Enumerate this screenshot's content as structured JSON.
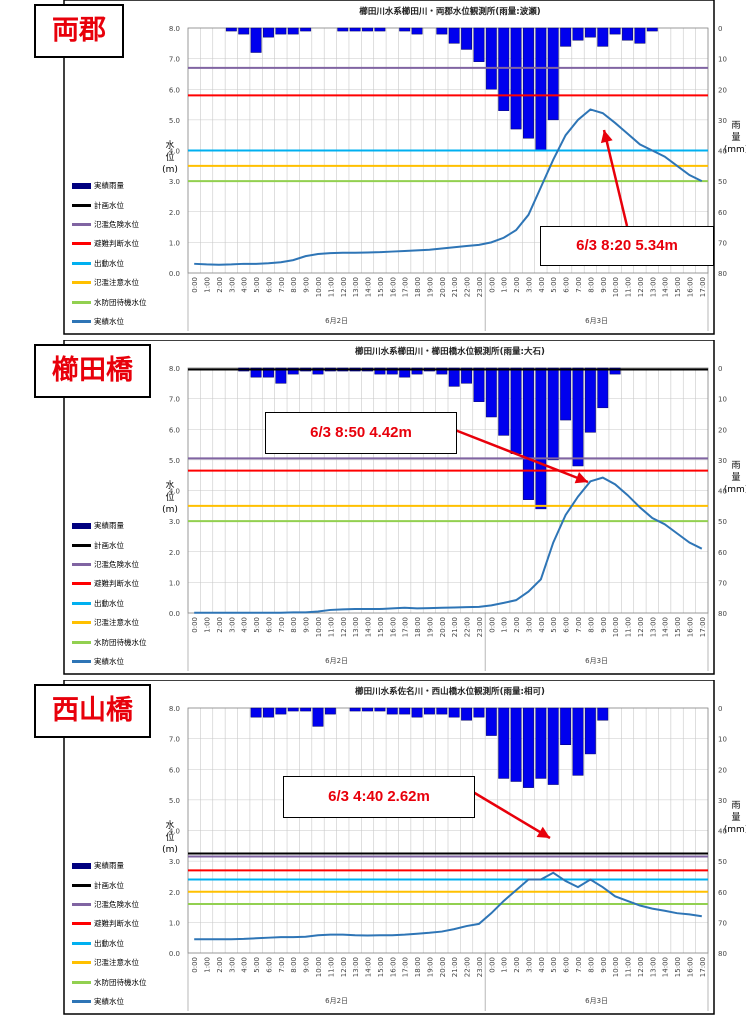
{
  "legend": {
    "items": [
      {
        "label": "実績雨量",
        "color": "#00007f"
      },
      {
        "label": "計画水位",
        "color": "#000000"
      },
      {
        "label": "氾濫危険水位",
        "color": "#8064a2"
      },
      {
        "label": "避難判断水位",
        "color": "#ff0000"
      },
      {
        "label": "出動水位",
        "color": "#00b0f0"
      },
      {
        "label": "氾濫注意水位",
        "color": "#ffc000"
      },
      {
        "label": "水防団待機水位",
        "color": "#92d050"
      },
      {
        "label": "実績水位",
        "color": "#2e75b6"
      }
    ]
  },
  "axes": {
    "left_label": [
      "水",
      "位",
      "(m)"
    ],
    "right_label": [
      "雨",
      "量",
      "(mm)"
    ]
  },
  "chart_data": [
    {
      "type": "line",
      "station": "両郡",
      "title": "櫛田川水系櫛田川・両郡水位観測所(雨量:波瀬)",
      "x": [
        "0:00",
        "1:00",
        "2:00",
        "3:00",
        "4:00",
        "5:00",
        "6:00",
        "7:00",
        "8:00",
        "9:00",
        "10:00",
        "11:00",
        "12:00",
        "13:00",
        "14:00",
        "15:00",
        "16:00",
        "17:00",
        "18:00",
        "19:00",
        "20:00",
        "21:00",
        "22:00",
        "23:00",
        "0:00",
        "1:00",
        "2:00",
        "3:00",
        "4:00",
        "5:00",
        "6:00",
        "7:00",
        "8:00",
        "9:00",
        "10:00",
        "11:00",
        "12:00",
        "13:00",
        "14:00",
        "15:00",
        "16:00",
        "17:00"
      ],
      "day_labels": [
        "6月2日",
        "6月3日"
      ],
      "ylim": [
        0,
        8
      ],
      "y_ticks": [
        "0.0",
        "1.0",
        "2.0",
        "3.0",
        "4.0",
        "5.0",
        "6.0",
        "7.0",
        "8.0"
      ],
      "y2lim": [
        0,
        80
      ],
      "y2_ticks": [
        "0",
        "10",
        "20",
        "30",
        "40",
        "50",
        "60",
        "70",
        "80"
      ],
      "ylabel": "水位(m)",
      "y2label": "雨量(mm)",
      "reference_levels": [
        {
          "name": "氾濫危険水位",
          "value": 6.7,
          "color": "#8064a2"
        },
        {
          "name": "避難判断水位",
          "value": 5.8,
          "color": "#ff0000"
        },
        {
          "name": "出動水位",
          "value": 4.0,
          "color": "#00b0f0"
        },
        {
          "name": "氾濫注意水位",
          "value": 3.5,
          "color": "#ffc000"
        },
        {
          "name": "水防団待機水位",
          "value": 3.0,
          "color": "#92d050"
        }
      ],
      "series": [
        {
          "name": "実績雨量",
          "type": "bar",
          "axis": "right",
          "values": [
            0,
            0,
            0,
            1,
            2,
            8,
            3,
            2,
            2,
            1,
            0,
            0,
            1,
            1,
            1,
            1,
            0,
            1,
            2,
            0,
            2,
            5,
            7,
            11,
            20,
            27,
            33,
            36,
            40,
            30,
            6,
            4,
            3,
            6,
            2,
            4,
            5,
            1,
            0,
            0,
            0,
            0
          ]
        },
        {
          "name": "実績水位",
          "type": "line",
          "axis": "left",
          "values": [
            0.3,
            0.28,
            0.27,
            0.28,
            0.3,
            0.3,
            0.32,
            0.35,
            0.42,
            0.55,
            0.62,
            0.65,
            0.66,
            0.66,
            0.67,
            0.68,
            0.7,
            0.72,
            0.74,
            0.76,
            0.8,
            0.84,
            0.88,
            0.92,
            1.0,
            1.15,
            1.4,
            1.9,
            2.8,
            3.7,
            4.5,
            5.0,
            5.34,
            5.22,
            4.9,
            4.55,
            4.2,
            4.0,
            3.8,
            3.5,
            3.2,
            3.0
          ]
        }
      ],
      "annotation": "6/3 8:20 5.34m"
    },
    {
      "type": "line",
      "station": "櫛田橋",
      "title": "櫛田川水系櫛田川・櫛田橋水位観測所(雨量:大石)",
      "x": [
        "0:00",
        "1:00",
        "2:00",
        "3:00",
        "4:00",
        "5:00",
        "6:00",
        "7:00",
        "8:00",
        "9:00",
        "10:00",
        "11:00",
        "12:00",
        "13:00",
        "14:00",
        "15:00",
        "16:00",
        "17:00",
        "18:00",
        "19:00",
        "20:00",
        "21:00",
        "22:00",
        "23:00",
        "0:00",
        "1:00",
        "2:00",
        "3:00",
        "4:00",
        "5:00",
        "6:00",
        "7:00",
        "8:00",
        "9:00",
        "10:00",
        "11:00",
        "12:00",
        "13:00",
        "14:00",
        "15:00",
        "16:00",
        "17:00"
      ],
      "day_labels": [
        "6月2日",
        "6月3日"
      ],
      "ylim": [
        0,
        8
      ],
      "y_ticks": [
        "0.0",
        "1.0",
        "2.0",
        "3.0",
        "4.0",
        "5.0",
        "6.0",
        "7.0",
        "8.0"
      ],
      "y2lim": [
        0,
        80
      ],
      "y2_ticks": [
        "0",
        "10",
        "20",
        "30",
        "40",
        "50",
        "60",
        "70",
        "80"
      ],
      "ylabel": "水位(m)",
      "y2label": "雨量(mm)",
      "reference_levels": [
        {
          "name": "計画水位",
          "value": 7.95,
          "color": "#000000"
        },
        {
          "name": "氾濫危険水位",
          "value": 5.05,
          "color": "#8064a2"
        },
        {
          "name": "避難判断水位",
          "value": 4.65,
          "color": "#ff0000"
        },
        {
          "name": "氾濫注意水位",
          "value": 3.5,
          "color": "#ffc000"
        },
        {
          "name": "水防団待機水位",
          "value": 3.0,
          "color": "#92d050"
        }
      ],
      "series": [
        {
          "name": "実績雨量",
          "type": "bar",
          "axis": "right",
          "values": [
            0,
            0,
            0,
            0,
            1,
            3,
            3,
            5,
            2,
            1,
            2,
            1,
            1,
            1,
            1,
            2,
            2,
            3,
            2,
            1,
            2,
            6,
            5,
            11,
            16,
            22,
            28,
            43,
            46,
            30,
            17,
            32,
            21,
            13,
            2,
            0,
            0,
            0,
            0,
            0,
            0,
            0
          ]
        },
        {
          "name": "実績水位",
          "type": "line",
          "axis": "left",
          "values": [
            0.01,
            0.01,
            0.01,
            0.01,
            0.01,
            0.01,
            0.01,
            0.01,
            0.02,
            0.02,
            0.05,
            0.1,
            0.12,
            0.13,
            0.13,
            0.13,
            0.15,
            0.17,
            0.15,
            0.16,
            0.17,
            0.18,
            0.19,
            0.2,
            0.25,
            0.33,
            0.42,
            0.7,
            1.1,
            2.3,
            3.2,
            3.8,
            4.3,
            4.42,
            4.2,
            3.85,
            3.45,
            3.1,
            2.9,
            2.6,
            2.3,
            2.1
          ]
        }
      ],
      "annotation": "6/3 8:50 4.42m"
    },
    {
      "type": "line",
      "station": "西山橋",
      "title": "櫛田川水系佐名川・西山橋水位観測所(雨量:相可)",
      "x": [
        "0:00",
        "1:00",
        "2:00",
        "3:00",
        "4:00",
        "5:00",
        "6:00",
        "7:00",
        "8:00",
        "9:00",
        "10:00",
        "11:00",
        "12:00",
        "13:00",
        "14:00",
        "15:00",
        "16:00",
        "17:00",
        "18:00",
        "19:00",
        "20:00",
        "21:00",
        "22:00",
        "23:00",
        "0:00",
        "1:00",
        "2:00",
        "3:00",
        "4:00",
        "5:00",
        "6:00",
        "7:00",
        "8:00",
        "9:00",
        "10:00",
        "11:00",
        "12:00",
        "13:00",
        "14:00",
        "15:00",
        "16:00",
        "17:00"
      ],
      "day_labels": [
        "6月2日",
        "6月3日"
      ],
      "ylim": [
        0,
        8
      ],
      "y_ticks": [
        "0.0",
        "1.0",
        "2.0",
        "3.0",
        "4.0",
        "5.0",
        "6.0",
        "7.0",
        "8.0"
      ],
      "y2lim": [
        0,
        80
      ],
      "y2_ticks": [
        "0",
        "10",
        "20",
        "30",
        "40",
        "50",
        "60",
        "70",
        "80"
      ],
      "ylabel": "水位(m)",
      "y2label": "雨量(mm)",
      "reference_levels": [
        {
          "name": "計画水位",
          "value": 3.25,
          "color": "#000000"
        },
        {
          "name": "氾濫危険水位",
          "value": 3.15,
          "color": "#8064a2"
        },
        {
          "name": "避難判断水位",
          "value": 2.7,
          "color": "#ff0000"
        },
        {
          "name": "出動水位",
          "value": 2.4,
          "color": "#00b0f0"
        },
        {
          "name": "氾濫注意水位",
          "value": 2.0,
          "color": "#ffc000"
        },
        {
          "name": "水防団待機水位",
          "value": 1.6,
          "color": "#92d050"
        }
      ],
      "series": [
        {
          "name": "実績雨量",
          "type": "bar",
          "axis": "right",
          "values": [
            0,
            0,
            0,
            0,
            0,
            3,
            3,
            2,
            1,
            1,
            6,
            2,
            0,
            1,
            1,
            1,
            2,
            2,
            3,
            2,
            2,
            3,
            4,
            3,
            9,
            23,
            24,
            26,
            23,
            25,
            12,
            22,
            15,
            4,
            0,
            0,
            0,
            0,
            0,
            0,
            0,
            0
          ]
        },
        {
          "name": "実績水位",
          "type": "line",
          "axis": "left",
          "values": [
            0.45,
            0.45,
            0.45,
            0.45,
            0.46,
            0.48,
            0.5,
            0.52,
            0.52,
            0.53,
            0.58,
            0.6,
            0.6,
            0.58,
            0.57,
            0.58,
            0.58,
            0.6,
            0.63,
            0.66,
            0.7,
            0.78,
            0.88,
            0.95,
            1.3,
            1.7,
            2.05,
            2.4,
            2.4,
            2.62,
            2.35,
            2.15,
            2.4,
            2.15,
            1.85,
            1.7,
            1.55,
            1.45,
            1.38,
            1.3,
            1.26,
            1.2
          ]
        }
      ],
      "annotation": "6/3 4:40 2.62m"
    }
  ]
}
